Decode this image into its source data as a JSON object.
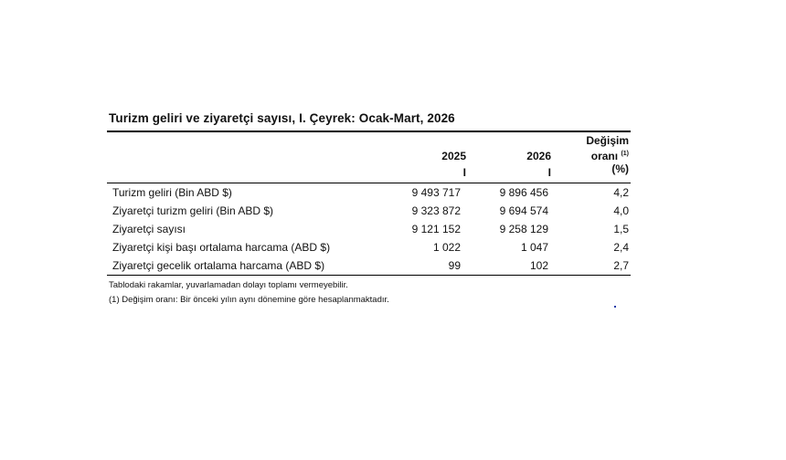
{
  "table": {
    "title": "Turizm geliri ve ziyaretçi sayısı, I. Çeyrek: Ocak-Mart, 2026",
    "headers": {
      "year1": "2025",
      "year2": "2026",
      "quarter1": "I",
      "quarter2": "I",
      "change_line1": "Değişim",
      "change_line2": "oranı",
      "change_sup": "(1)",
      "change_unit": "(%)"
    },
    "rows": [
      {
        "label": "Turizm geliri (Bin ABD $)",
        "v2025": "9 493 717",
        "v2026": "9 896 456",
        "change": "4,2"
      },
      {
        "label": "Ziyaretçi turizm geliri (Bin ABD $)",
        "v2025": "9 323 872",
        "v2026": "9 694 574",
        "change": "4,0"
      },
      {
        "label": "Ziyaretçi sayısı",
        "v2025": "9 121 152",
        "v2026": "9 258 129",
        "change": "1,5"
      },
      {
        "label": "Ziyaretçi kişi başı ortalama harcama (ABD $)",
        "v2025": "1 022",
        "v2026": "1 047",
        "change": "2,4"
      },
      {
        "label": "Ziyaretçi gecelik ortalama harcama (ABD $)",
        "v2025": "99",
        "v2026": "102",
        "change": "2,7"
      }
    ],
    "notes": [
      "Tablodaki rakamlar, yuvarlamadan dolayı toplamı vermeyebilir.",
      "(1) Değişim oranı: Bir önceki yılın aynı dönemine göre hesaplanmaktadır."
    ]
  }
}
